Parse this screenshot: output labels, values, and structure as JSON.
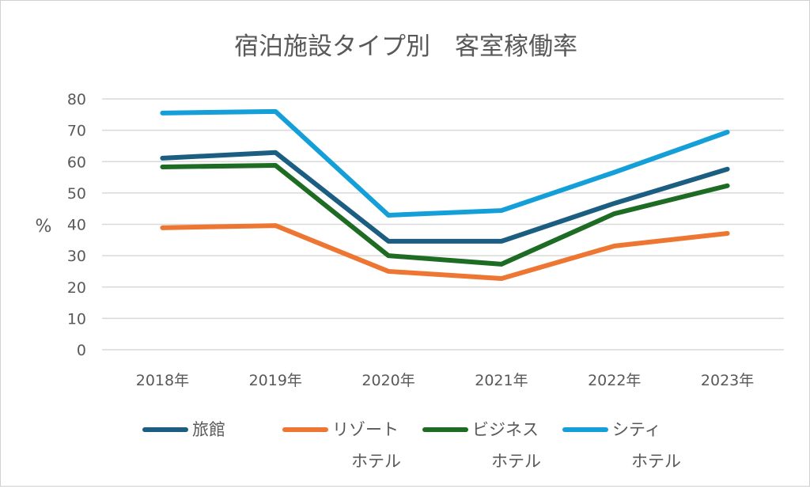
{
  "chart_data": {
    "type": "line",
    "title": "宿泊施設タイプ別　客室稼働率",
    "xlabel": "",
    "ylabel": "%",
    "ylim": [
      0,
      80
    ],
    "yticks": [
      "0",
      "10",
      "20",
      "30",
      "40",
      "50",
      "60",
      "70",
      "80"
    ],
    "grid": true,
    "legend_position": "bottom",
    "categories": [
      "2018年",
      "2019年",
      "2020年",
      "2021年",
      "2022年",
      "2023年"
    ],
    "series": [
      {
        "name": "旅館",
        "name_lines": [
          "旅館"
        ],
        "color": "#1b5e82",
        "values": [
          61.1,
          62.9,
          34.6,
          34.6,
          46.7,
          57.6
        ]
      },
      {
        "name": "リゾートホテル",
        "name_lines": [
          "リゾート",
          "ホテル"
        ],
        "color": "#ed7633",
        "values": [
          38.9,
          39.6,
          25.0,
          22.7,
          33.1,
          37.1
        ]
      },
      {
        "name": "ビジネスホテル",
        "name_lines": [
          "ビジネス",
          "ホテル"
        ],
        "color": "#1e6b24",
        "values": [
          58.3,
          58.8,
          30.0,
          27.3,
          43.4,
          52.3
        ]
      },
      {
        "name": "シティホテル",
        "name_lines": [
          "シティ",
          "ホテル"
        ],
        "color": "#149fd8",
        "values": [
          75.5,
          76.0,
          42.9,
          44.4,
          56.6,
          69.4
        ]
      }
    ]
  }
}
